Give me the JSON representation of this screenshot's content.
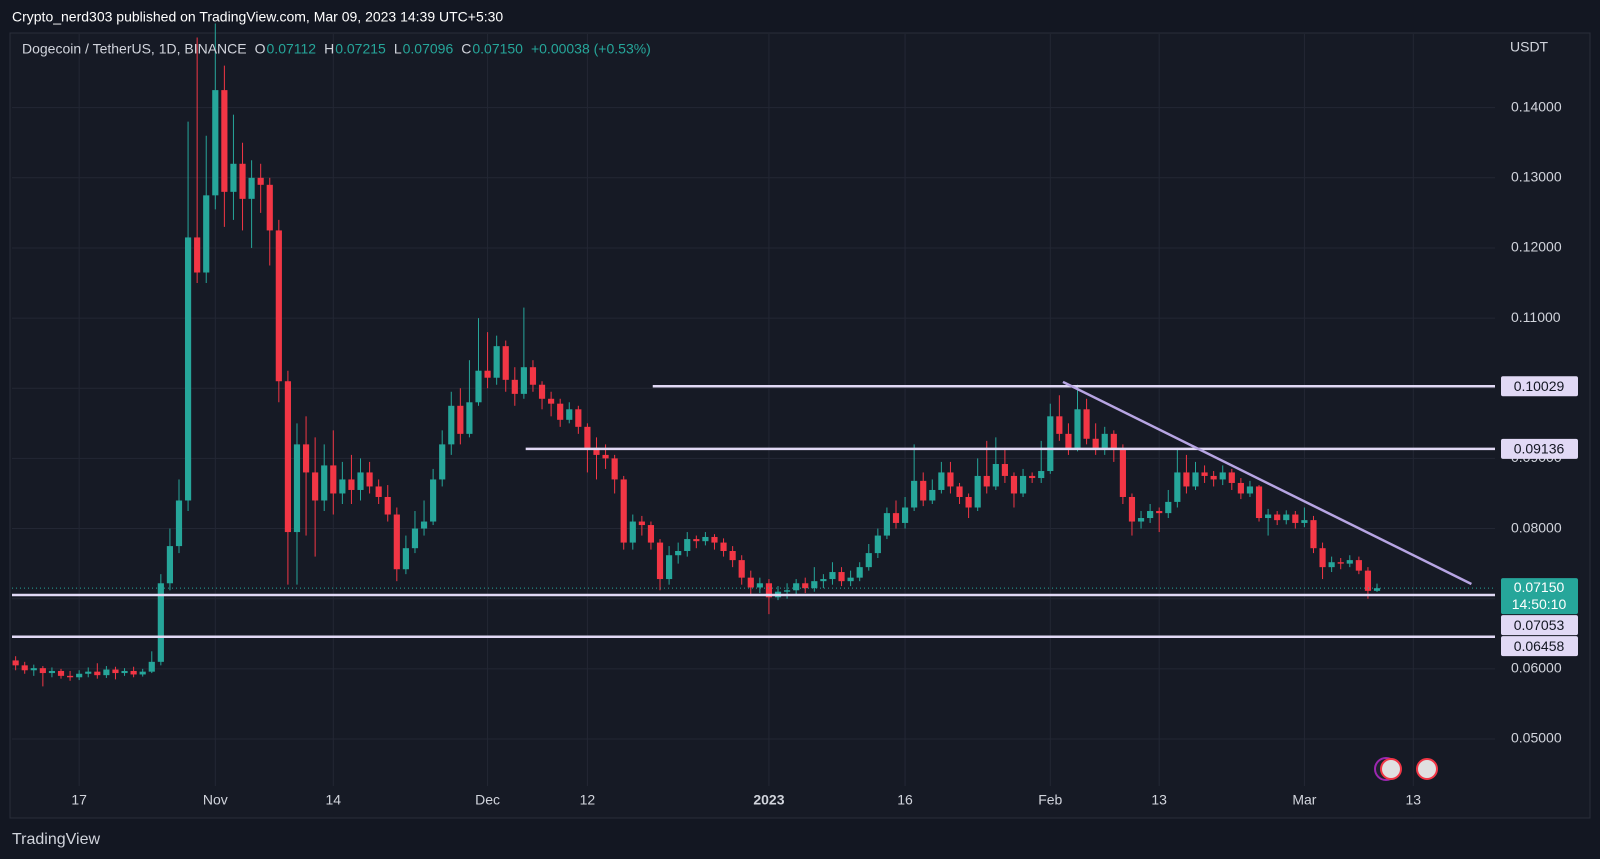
{
  "header": {
    "text": "Crypto_nerd303 published on TradingView.com, Mar 09, 2023 14:39 UTC+5:30"
  },
  "footer": {
    "brand": "TradingView"
  },
  "chart_data": {
    "type": "candlestick",
    "title": "Dogecoin / TetherUS, 1D, BINANCE",
    "legend": [
      {
        "label": "O",
        "value": "0.07112"
      },
      {
        "label": "H",
        "value": "0.07215"
      },
      {
        "label": "L",
        "value": "0.07096"
      },
      {
        "label": "C",
        "value": "0.07150"
      }
    ],
    "change": "+0.00038 (+0.53%)",
    "legend_color": "#26a69a",
    "currency": "USDT",
    "up_color": "#26a69a",
    "down_color": "#f23645",
    "grid": true,
    "xlim": [
      -0.4,
      163
    ],
    "xticks": [
      {
        "value": 7,
        "label": "17"
      },
      {
        "value": 22,
        "label": "Nov"
      },
      {
        "value": 35,
        "label": "14"
      },
      {
        "value": 52,
        "label": "Dec"
      },
      {
        "value": 63,
        "label": "12"
      },
      {
        "value": 83,
        "label": "2023"
      },
      {
        "value": 98,
        "label": "16"
      },
      {
        "value": 114,
        "label": "Feb"
      },
      {
        "value": 126,
        "label": "13"
      },
      {
        "value": 142,
        "label": "Mar"
      },
      {
        "value": 154,
        "label": "13"
      }
    ],
    "ylim": [
      0.0433,
      0.1505
    ],
    "yticks": [
      {
        "value": 0.05,
        "label": "0.05000"
      },
      {
        "value": 0.06,
        "label": "0.06000"
      },
      {
        "value": 0.07,
        "label": "0.07000"
      },
      {
        "value": 0.08,
        "label": "0.08000"
      },
      {
        "value": 0.09,
        "label": "0.09000"
      },
      {
        "value": 0.1,
        "label": "0.10000"
      },
      {
        "value": 0.11,
        "label": "0.11000"
      },
      {
        "value": 0.12,
        "label": "0.12000"
      },
      {
        "value": 0.13,
        "label": "0.13000"
      },
      {
        "value": 0.14,
        "label": "0.14000"
      }
    ],
    "ohlc": [
      [
        0.0612,
        0.0618,
        0.0598,
        0.0605
      ],
      [
        0.0605,
        0.061,
        0.0593,
        0.0598
      ],
      [
        0.0598,
        0.0606,
        0.059,
        0.0601
      ],
      [
        0.0601,
        0.0604,
        0.0575,
        0.0594
      ],
      [
        0.0594,
        0.0602,
        0.0588,
        0.0597
      ],
      [
        0.0597,
        0.06,
        0.0586,
        0.059
      ],
      [
        0.059,
        0.0597,
        0.0583,
        0.0588
      ],
      [
        0.0588,
        0.0598,
        0.0584,
        0.0593
      ],
      [
        0.0593,
        0.0602,
        0.0588,
        0.0596
      ],
      [
        0.0596,
        0.0608,
        0.0586,
        0.0591
      ],
      [
        0.0591,
        0.0604,
        0.0587,
        0.0599
      ],
      [
        0.0599,
        0.0603,
        0.0585,
        0.0594
      ],
      [
        0.0594,
        0.0601,
        0.059,
        0.0597
      ],
      [
        0.0597,
        0.0603,
        0.0588,
        0.0592
      ],
      [
        0.0592,
        0.06,
        0.0589,
        0.0596
      ],
      [
        0.0596,
        0.0625,
        0.0594,
        0.061
      ],
      [
        0.061,
        0.0735,
        0.0605,
        0.0722
      ],
      [
        0.0722,
        0.08,
        0.0712,
        0.0775
      ],
      [
        0.0775,
        0.087,
        0.0765,
        0.084
      ],
      [
        0.084,
        0.138,
        0.0825,
        0.1215
      ],
      [
        0.1215,
        0.15,
        0.115,
        0.1165
      ],
      [
        0.1165,
        0.136,
        0.115,
        0.1275
      ],
      [
        0.1275,
        0.152,
        0.1255,
        0.1425
      ],
      [
        0.1425,
        0.146,
        0.123,
        0.128
      ],
      [
        0.128,
        0.139,
        0.124,
        0.132
      ],
      [
        0.132,
        0.135,
        0.1225,
        0.127
      ],
      [
        0.127,
        0.1325,
        0.12,
        0.13
      ],
      [
        0.13,
        0.132,
        0.125,
        0.129
      ],
      [
        0.129,
        0.13,
        0.1175,
        0.1225
      ],
      [
        0.1225,
        0.124,
        0.098,
        0.101
      ],
      [
        0.101,
        0.1025,
        0.072,
        0.0795
      ],
      [
        0.0795,
        0.095,
        0.072,
        0.092
      ],
      [
        0.092,
        0.096,
        0.079,
        0.088
      ],
      [
        0.088,
        0.093,
        0.076,
        0.084
      ],
      [
        0.084,
        0.092,
        0.0825,
        0.089
      ],
      [
        0.089,
        0.094,
        0.082,
        0.085
      ],
      [
        0.085,
        0.0895,
        0.0835,
        0.087
      ],
      [
        0.087,
        0.0905,
        0.0835,
        0.0855
      ],
      [
        0.0855,
        0.09,
        0.084,
        0.088
      ],
      [
        0.088,
        0.0895,
        0.085,
        0.086
      ],
      [
        0.086,
        0.087,
        0.0835,
        0.0845
      ],
      [
        0.0845,
        0.0862,
        0.081,
        0.082
      ],
      [
        0.082,
        0.083,
        0.0725,
        0.0742
      ],
      [
        0.0742,
        0.079,
        0.0735,
        0.0772
      ],
      [
        0.0772,
        0.0825,
        0.0765,
        0.08
      ],
      [
        0.08,
        0.084,
        0.079,
        0.081
      ],
      [
        0.081,
        0.0885,
        0.0805,
        0.087
      ],
      [
        0.087,
        0.094,
        0.086,
        0.092
      ],
      [
        0.092,
        0.0995,
        0.0905,
        0.0975
      ],
      [
        0.0975,
        0.1,
        0.092,
        0.0935
      ],
      [
        0.0935,
        0.104,
        0.093,
        0.098
      ],
      [
        0.098,
        0.11,
        0.0975,
        0.1025
      ],
      [
        0.1025,
        0.108,
        0.1,
        0.1015
      ],
      [
        0.1015,
        0.1075,
        0.1005,
        0.106
      ],
      [
        0.106,
        0.1068,
        0.0995,
        0.1012
      ],
      [
        0.1012,
        0.103,
        0.0975,
        0.0992
      ],
      [
        0.0992,
        0.1115,
        0.0985,
        0.103
      ],
      [
        0.103,
        0.104,
        0.0995,
        0.1005
      ],
      [
        0.1005,
        0.101,
        0.097,
        0.0985
      ],
      [
        0.0985,
        0.0995,
        0.096,
        0.0978
      ],
      [
        0.0978,
        0.0985,
        0.0945,
        0.0955
      ],
      [
        0.0955,
        0.098,
        0.095,
        0.097
      ],
      [
        0.097,
        0.0975,
        0.0935,
        0.0945
      ],
      [
        0.0945,
        0.095,
        0.088,
        0.0915
      ],
      [
        0.0915,
        0.093,
        0.087,
        0.0905
      ],
      [
        0.0905,
        0.092,
        0.0885,
        0.09
      ],
      [
        0.09,
        0.0905,
        0.085,
        0.087
      ],
      [
        0.087,
        0.0875,
        0.077,
        0.078
      ],
      [
        0.078,
        0.082,
        0.077,
        0.081
      ],
      [
        0.081,
        0.0818,
        0.079,
        0.0805
      ],
      [
        0.0805,
        0.081,
        0.077,
        0.078
      ],
      [
        0.078,
        0.0785,
        0.0712,
        0.0728
      ],
      [
        0.0728,
        0.0775,
        0.072,
        0.0762
      ],
      [
        0.0762,
        0.078,
        0.075,
        0.0768
      ],
      [
        0.0768,
        0.0795,
        0.076,
        0.0785
      ],
      [
        0.0785,
        0.079,
        0.0772,
        0.0782
      ],
      [
        0.0782,
        0.0795,
        0.0776,
        0.0788
      ],
      [
        0.0788,
        0.0792,
        0.077,
        0.078
      ],
      [
        0.078,
        0.0786,
        0.076,
        0.0768
      ],
      [
        0.0768,
        0.0775,
        0.0745,
        0.0755
      ],
      [
        0.0755,
        0.0762,
        0.072,
        0.073
      ],
      [
        0.073,
        0.074,
        0.0705,
        0.0716
      ],
      [
        0.0716,
        0.073,
        0.0708,
        0.0722
      ],
      [
        0.0722,
        0.0728,
        0.0678,
        0.0702
      ],
      [
        0.0702,
        0.0718,
        0.0698,
        0.071
      ],
      [
        0.071,
        0.0722,
        0.07,
        0.0712
      ],
      [
        0.0712,
        0.0728,
        0.0705,
        0.0722
      ],
      [
        0.0722,
        0.073,
        0.0708,
        0.0715
      ],
      [
        0.0715,
        0.0745,
        0.071,
        0.0725
      ],
      [
        0.0725,
        0.0735,
        0.0715,
        0.0728
      ],
      [
        0.0728,
        0.0752,
        0.072,
        0.0738
      ],
      [
        0.0738,
        0.0745,
        0.0718,
        0.0725
      ],
      [
        0.0725,
        0.074,
        0.0718,
        0.073
      ],
      [
        0.073,
        0.0752,
        0.0725,
        0.0745
      ],
      [
        0.0745,
        0.0778,
        0.074,
        0.0765
      ],
      [
        0.0765,
        0.08,
        0.0758,
        0.079
      ],
      [
        0.079,
        0.083,
        0.0785,
        0.0822
      ],
      [
        0.0822,
        0.084,
        0.08,
        0.0808
      ],
      [
        0.0808,
        0.0845,
        0.08,
        0.083
      ],
      [
        0.083,
        0.092,
        0.0825,
        0.0868
      ],
      [
        0.0868,
        0.088,
        0.0832,
        0.084
      ],
      [
        0.084,
        0.087,
        0.0835,
        0.0855
      ],
      [
        0.0855,
        0.0895,
        0.085,
        0.088
      ],
      [
        0.088,
        0.0895,
        0.085,
        0.086
      ],
      [
        0.086,
        0.0865,
        0.0835,
        0.0845
      ],
      [
        0.0845,
        0.085,
        0.0815,
        0.083
      ],
      [
        0.083,
        0.09,
        0.0825,
        0.0875
      ],
      [
        0.0875,
        0.0925,
        0.085,
        0.086
      ],
      [
        0.086,
        0.093,
        0.0855,
        0.0892
      ],
      [
        0.0892,
        0.0915,
        0.0865,
        0.0875
      ],
      [
        0.0875,
        0.088,
        0.083,
        0.085
      ],
      [
        0.085,
        0.0885,
        0.0845,
        0.0875
      ],
      [
        0.0875,
        0.088,
        0.0865,
        0.0872
      ],
      [
        0.0872,
        0.0925,
        0.0865,
        0.0882
      ],
      [
        0.0882,
        0.0978,
        0.0878,
        0.096
      ],
      [
        0.096,
        0.099,
        0.0925,
        0.0935
      ],
      [
        0.0935,
        0.095,
        0.0905,
        0.0915
      ],
      [
        0.0915,
        0.1005,
        0.091,
        0.097
      ],
      [
        0.097,
        0.0985,
        0.092,
        0.0928
      ],
      [
        0.0928,
        0.095,
        0.0905,
        0.0915
      ],
      [
        0.0915,
        0.0945,
        0.0905,
        0.0935
      ],
      [
        0.0935,
        0.094,
        0.0895,
        0.0912
      ],
      [
        0.0912,
        0.092,
        0.0835,
        0.0845
      ],
      [
        0.0845,
        0.085,
        0.079,
        0.081
      ],
      [
        0.081,
        0.0825,
        0.08,
        0.0815
      ],
      [
        0.0815,
        0.0835,
        0.0808,
        0.0825
      ],
      [
        0.0825,
        0.083,
        0.0795,
        0.0822
      ],
      [
        0.0822,
        0.0855,
        0.0815,
        0.0838
      ],
      [
        0.0838,
        0.0915,
        0.083,
        0.088
      ],
      [
        0.088,
        0.0905,
        0.085,
        0.086
      ],
      [
        0.086,
        0.0895,
        0.0855,
        0.088
      ],
      [
        0.088,
        0.089,
        0.0865,
        0.0875
      ],
      [
        0.0875,
        0.0882,
        0.086,
        0.087
      ],
      [
        0.087,
        0.089,
        0.0862,
        0.088
      ],
      [
        0.088,
        0.0885,
        0.0855,
        0.0865
      ],
      [
        0.0865,
        0.0872,
        0.0842,
        0.085
      ],
      [
        0.085,
        0.0868,
        0.0845,
        0.086
      ],
      [
        0.086,
        0.0862,
        0.081,
        0.0815
      ],
      [
        0.0815,
        0.0828,
        0.079,
        0.082
      ],
      [
        0.082,
        0.0825,
        0.0805,
        0.0812
      ],
      [
        0.0812,
        0.0826,
        0.0806,
        0.082
      ],
      [
        0.082,
        0.0825,
        0.08,
        0.0808
      ],
      [
        0.0808,
        0.083,
        0.0802,
        0.0812
      ],
      [
        0.0812,
        0.0818,
        0.0765,
        0.0772
      ],
      [
        0.0772,
        0.078,
        0.0728,
        0.0745
      ],
      [
        0.0745,
        0.076,
        0.0738,
        0.0752
      ],
      [
        0.0752,
        0.0758,
        0.0742,
        0.075
      ],
      [
        0.075,
        0.0762,
        0.0745,
        0.0755
      ],
      [
        0.0755,
        0.076,
        0.0735,
        0.074
      ],
      [
        0.074,
        0.0745,
        0.07,
        0.07112
      ],
      [
        0.07112,
        0.07215,
        0.07096,
        0.0715
      ]
    ],
    "hlines": [
      {
        "value": 0.10029,
        "label": "0.10029",
        "start": 70.2
      },
      {
        "value": 0.09136,
        "label": "0.09136",
        "start": 56.2
      },
      {
        "value": 0.07053,
        "label": "0.07053"
      },
      {
        "value": 0.06458,
        "label": "0.06458"
      }
    ],
    "hline_color": "#e1d9f5",
    "trendline": {
      "x": [
        115.4,
        160.4
      ],
      "y": [
        0.1009,
        0.0721
      ],
      "color": "#b7a5e3"
    },
    "last_price": {
      "value": 0.0715,
      "label": "0.07150",
      "countdown": "14:50:10"
    }
  }
}
